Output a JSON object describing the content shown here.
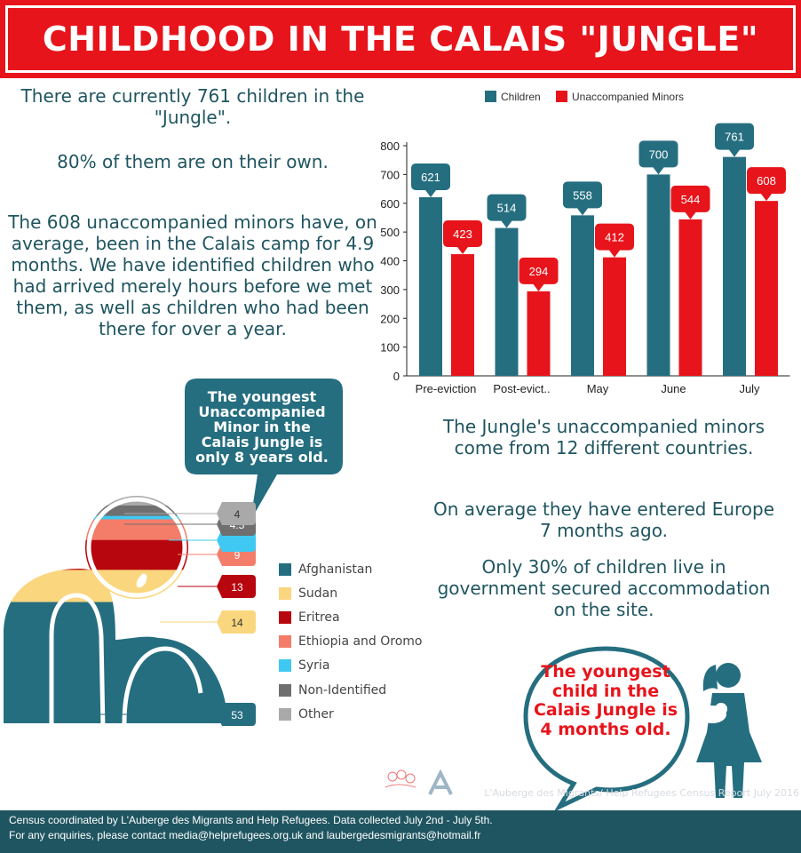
{
  "header": {
    "title": "CHILDHOOD IN THE CALAIS \"JUNGLE\""
  },
  "left_text": {
    "p1": "There are currently 761 children in the \"Jungle\".",
    "p2": "80% of them are on their own.",
    "p3": "The 608 unaccompanied minors have, on average, been in the Calais camp for 4.9 months. We have identified children who had arrived merely hours before we met them, as well as children who had been there for over a year."
  },
  "right_text": {
    "p1": "The Jungle's unaccompanied minors come from 12 different countries.",
    "p2": "On average they have entered Europe 7 months ago.",
    "p3": "Only 30% of children live in government secured accommodation on the site."
  },
  "speech_bubble": {
    "text": "The youngest Unaccompanied Minor in the Calais Jungle is only 8 years old."
  },
  "red_bubble": {
    "text": "The youngest child in the Calais Jungle is 4 months old."
  },
  "watermark": {
    "text": "L'Auberge des Migrants/ Help Refugees  Census Report July 2016"
  },
  "footer": {
    "line1": "Census coordinated by L'Auberge des Migrants and Help Refugees. Data collected July 2nd - July 5th.",
    "line2": "For any enquiries, please contact media@helprefugees.org.uk and laubergedesmigrants@hotmail.fr"
  },
  "colors": {
    "red": "#e8141b",
    "teal": "#256e80",
    "dark_teal": "#1f5560",
    "sudan": "#fad67e",
    "eritrea": "#b7060e",
    "ethiopia": "#f47d6a",
    "syria": "#3fc8f2",
    "non_identified": "#6f6f6f",
    "other": "#a9a9a9"
  },
  "chart_data": [
    {
      "type": "bar",
      "categories": [
        "Pre-eviction",
        "Post-evict..",
        "May",
        "June",
        "July"
      ],
      "series": [
        {
          "name": "Children",
          "color": "#256e80",
          "values": [
            621,
            514,
            558,
            700,
            761
          ]
        },
        {
          "name": "Unaccompanied Minors",
          "color": "#e8141b",
          "values": [
            423,
            294,
            412,
            544,
            608
          ]
        }
      ],
      "title": "",
      "xlabel": "",
      "ylabel": "",
      "ylim": [
        0,
        800
      ],
      "yticks": [
        0,
        100,
        200,
        300,
        400,
        500,
        600,
        700,
        800
      ],
      "legend": "top",
      "grid": false
    },
    {
      "type": "bar",
      "orientation": "stacked",
      "categories": [
        "Afghanistan",
        "Sudan",
        "Eritrea",
        "Ethiopia and Oromo",
        "Syria",
        "Non-Identified",
        "Other"
      ],
      "values": [
        53,
        14,
        13,
        9,
        1.5,
        4.5,
        4
      ],
      "value_labels": [
        "53",
        "14",
        "13",
        "9",
        "",
        "4.5",
        "4"
      ],
      "colors": [
        "#256e80",
        "#fad67e",
        "#b7060e",
        "#f47d6a",
        "#3fc8f2",
        "#6f6f6f",
        "#a9a9a9"
      ],
      "legend": "right"
    }
  ]
}
